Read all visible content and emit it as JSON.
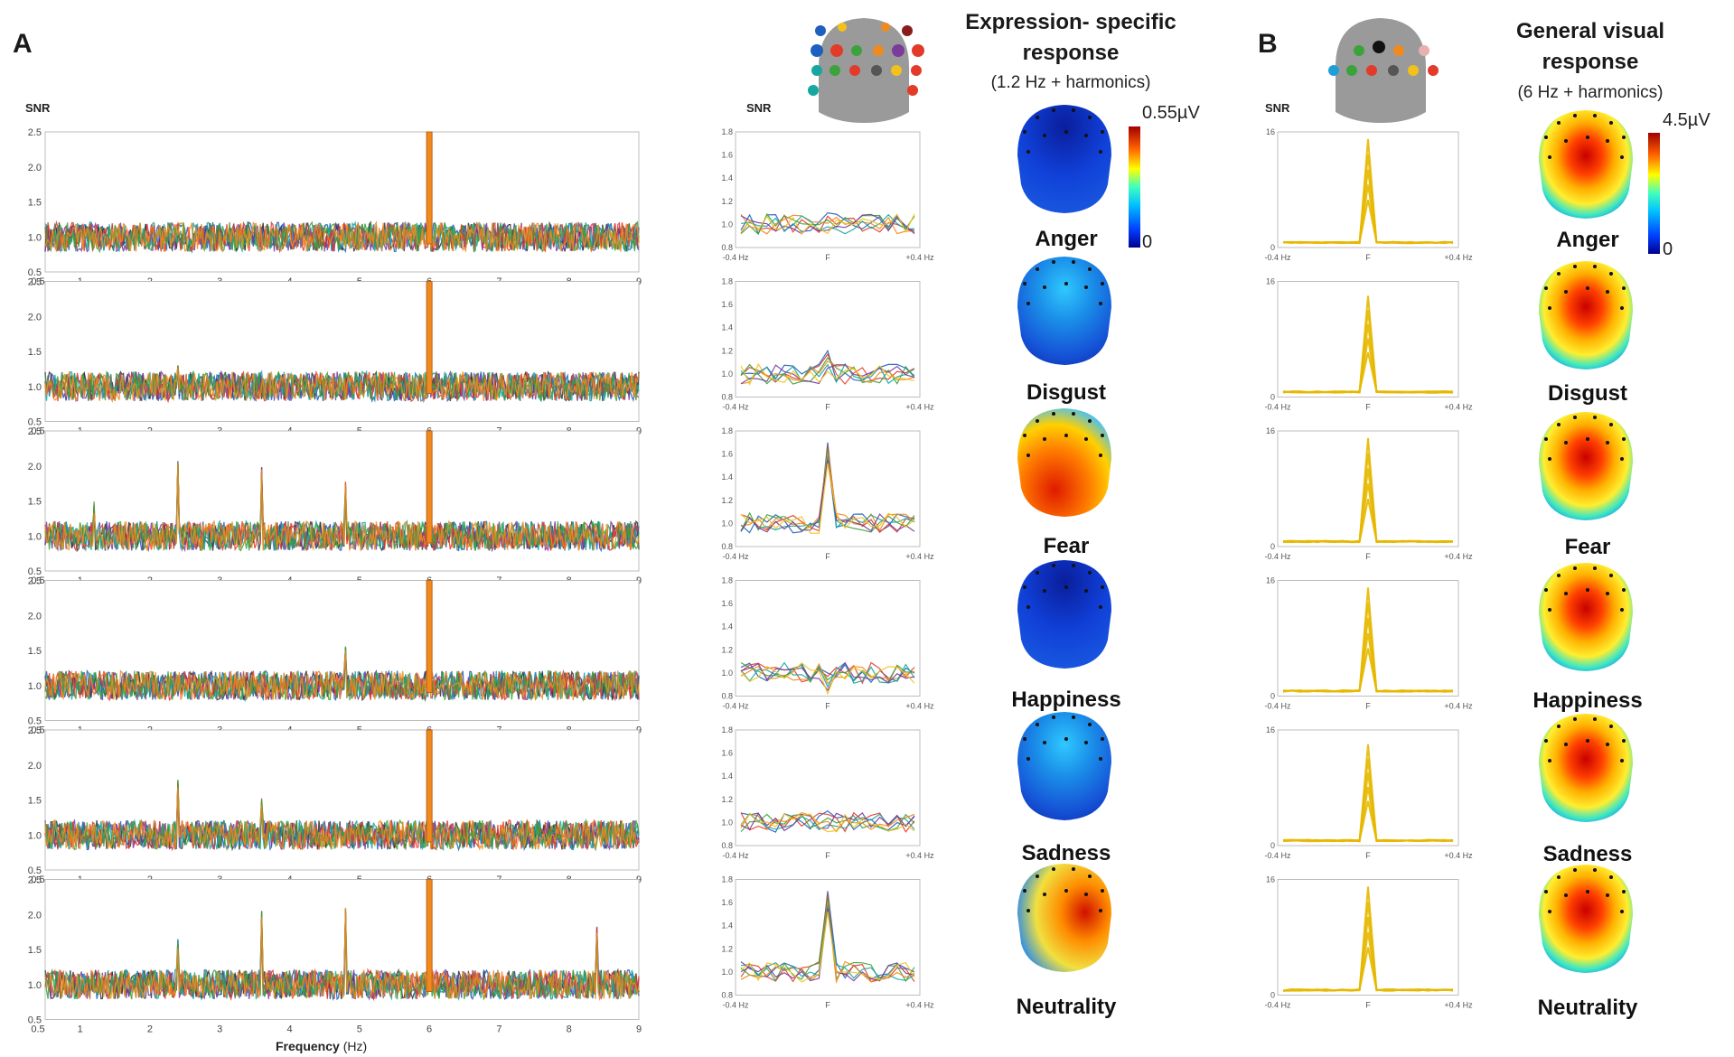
{
  "panel_a_label": "A",
  "panel_b_label": "B",
  "snr_label": "SNR",
  "frequency_label": "Frequency",
  "frequency_unit": "(Hz)",
  "headings": {
    "expression": "Expression- specific",
    "expression_2": "response",
    "expression_sub": "(1.2 Hz + harmonics)",
    "general": "General visual",
    "general_2": "response",
    "general_sub": "(6 Hz + harmonics)"
  },
  "colorbars": {
    "expression_max": "0.55µV",
    "expression_min": "0",
    "general_max": "4.5µV",
    "general_min": "0"
  },
  "conditions": [
    "Anger",
    "Disgust",
    "Fear",
    "Happiness",
    "Sadness",
    "Neutrality"
  ],
  "zoom_tick_labels": [
    "-0.4 Hz",
    "F",
    "+0.4 Hz"
  ],
  "colors": {
    "series": [
      "#1f5fbf",
      "#e23b2a",
      "#3aa33a",
      "#f08a1c",
      "#18a6a0",
      "#7a3b9a",
      "#f2c21b",
      "#333333"
    ],
    "zoom_b_series": "#e6b800"
  },
  "chart_data": [
    {
      "type": "line",
      "title": "",
      "xlabel": "Frequency (Hz)",
      "ylabel": "SNR",
      "xlim": [
        0.5,
        9
      ],
      "ylim": [
        0.5,
        2.5
      ],
      "x_ticks": [
        "0.5",
        "1",
        "2",
        "3",
        "4",
        "5",
        "6",
        "7",
        "8",
        "9"
      ],
      "y_ticks": [
        "0.5",
        "1.0",
        "1.5",
        "2.0",
        "2.5"
      ],
      "rows": [
        {
          "condition": "Anger",
          "baseline": 1.0,
          "peaks": [
            {
              "x": 6.0,
              "y": 2.5
            }
          ]
        },
        {
          "condition": "Disgust",
          "baseline": 1.0,
          "peaks": [
            {
              "x": 2.4,
              "y": 1.4
            },
            {
              "x": 6.0,
              "y": 2.5
            }
          ]
        },
        {
          "condition": "Fear",
          "baseline": 1.0,
          "peaks": [
            {
              "x": 1.2,
              "y": 1.5
            },
            {
              "x": 2.4,
              "y": 2.1
            },
            {
              "x": 3.6,
              "y": 2.0
            },
            {
              "x": 4.8,
              "y": 1.8
            },
            {
              "x": 6.0,
              "y": 2.5
            }
          ]
        },
        {
          "condition": "Happiness",
          "baseline": 1.0,
          "peaks": [
            {
              "x": 4.8,
              "y": 1.6
            },
            {
              "x": 6.0,
              "y": 2.5
            }
          ]
        },
        {
          "condition": "Sadness",
          "baseline": 1.0,
          "peaks": [
            {
              "x": 2.4,
              "y": 1.8
            },
            {
              "x": 3.6,
              "y": 1.6
            },
            {
              "x": 6.0,
              "y": 2.5
            }
          ]
        },
        {
          "condition": "Neutrality",
          "baseline": 1.0,
          "peaks": [
            {
              "x": 2.4,
              "y": 1.7
            },
            {
              "x": 3.6,
              "y": 2.1
            },
            {
              "x": 4.8,
              "y": 2.1
            },
            {
              "x": 6.0,
              "y": 2.5
            },
            {
              "x": 8.4,
              "y": 1.9
            }
          ]
        }
      ]
    },
    {
      "type": "line",
      "title": "Expression- specific response (1.2 Hz + harmonics)",
      "ylabel": "SNR",
      "ylim": [
        0.8,
        1.8
      ],
      "x_ticks": [
        "-0.4 Hz",
        "F",
        "+0.4 Hz"
      ],
      "y_ticks": [
        "0.8",
        "1.0",
        "1.2",
        "1.4",
        "1.6",
        "1.8"
      ],
      "peak_at_F": [
        {
          "condition": "Anger",
          "y": 1.1
        },
        {
          "condition": "Disgust",
          "y": 1.2
        },
        {
          "condition": "Fear",
          "y": 1.7
        },
        {
          "condition": "Happiness",
          "y": 1.0
        },
        {
          "condition": "Sadness",
          "y": 1.1
        },
        {
          "condition": "Neutrality",
          "y": 1.7
        }
      ]
    },
    {
      "type": "line",
      "title": "General visual response (6 Hz + harmonics)",
      "ylabel": "SNR",
      "ylim": [
        0,
        16
      ],
      "x_ticks": [
        "-0.4 Hz",
        "F",
        "+0.4 Hz"
      ],
      "y_ticks": [
        "0",
        "16"
      ],
      "peak_at_F": [
        {
          "condition": "Anger",
          "y": 15
        },
        {
          "condition": "Disgust",
          "y": 14
        },
        {
          "condition": "Fear",
          "y": 15
        },
        {
          "condition": "Happiness",
          "y": 15
        },
        {
          "condition": "Sadness",
          "y": 14
        },
        {
          "condition": "Neutrality",
          "y": 15
        }
      ]
    }
  ],
  "topomaps": {
    "expression": [
      "low",
      "low-mid",
      "high",
      "low",
      "low-mid",
      "high-right"
    ],
    "general": [
      "high",
      "high",
      "high",
      "high",
      "high",
      "high"
    ]
  }
}
